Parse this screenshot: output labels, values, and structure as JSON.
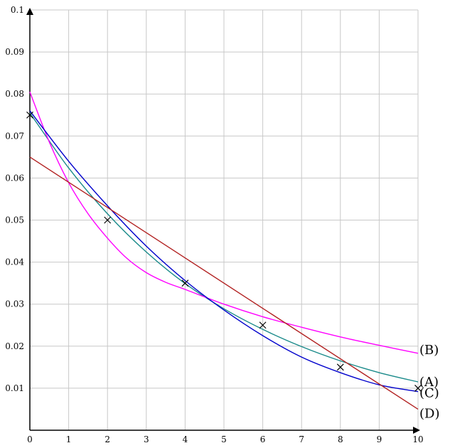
{
  "chart_data": {
    "type": "line",
    "title": "",
    "xlabel": "",
    "ylabel": "",
    "xlim": [
      0,
      10
    ],
    "ylim": [
      0,
      0.1
    ],
    "grid": true,
    "x_ticks": [
      "0",
      "1",
      "2",
      "3",
      "4",
      "5",
      "6",
      "7",
      "8",
      "9",
      "10"
    ],
    "y_ticks": [
      "0.01",
      "0.02",
      "0.03",
      "0.04",
      "0.05",
      "0.06",
      "0.07",
      "0.08",
      "0.09",
      "0.1"
    ],
    "points": {
      "marker": "x",
      "x": [
        0,
        2,
        4,
        6,
        8,
        10
      ],
      "y": [
        0.075,
        0.05,
        0.035,
        0.025,
        0.015,
        0.01
      ]
    },
    "series": [
      {
        "name": "(A)",
        "color": "#1a8a8a",
        "x": [
          0,
          1,
          2,
          3,
          4,
          5,
          6,
          7,
          8,
          9,
          10
        ],
        "y": [
          0.0755,
          0.0624,
          0.0515,
          0.0424,
          0.0349,
          0.0289,
          0.024,
          0.0199,
          0.0165,
          0.0137,
          0.0115
        ]
      },
      {
        "name": "(B)",
        "color": "#ff00ff",
        "x": [
          0,
          0.5,
          1,
          1.5,
          2,
          2.5,
          3,
          3.5,
          4,
          5,
          6,
          7,
          8,
          9,
          10
        ],
        "y": [
          0.0805,
          0.0686,
          0.0589,
          0.0515,
          0.0457,
          0.0409,
          0.0375,
          0.0352,
          0.0335,
          0.03,
          0.027,
          0.0245,
          0.0222,
          0.0202,
          0.0183
        ]
      },
      {
        "name": "(C)",
        "color": "#0000cc",
        "x": [
          0,
          1,
          2,
          3,
          4,
          5,
          6,
          7,
          8,
          9,
          10
        ],
        "y": [
          0.076,
          0.064,
          0.0534,
          0.0438,
          0.0356,
          0.0286,
          0.0225,
          0.0174,
          0.0137,
          0.0108,
          0.0092
        ]
      },
      {
        "name": "(D)",
        "color": "#b22222",
        "x": [
          0,
          10
        ],
        "y": [
          0.065,
          0.005
        ]
      }
    ]
  }
}
